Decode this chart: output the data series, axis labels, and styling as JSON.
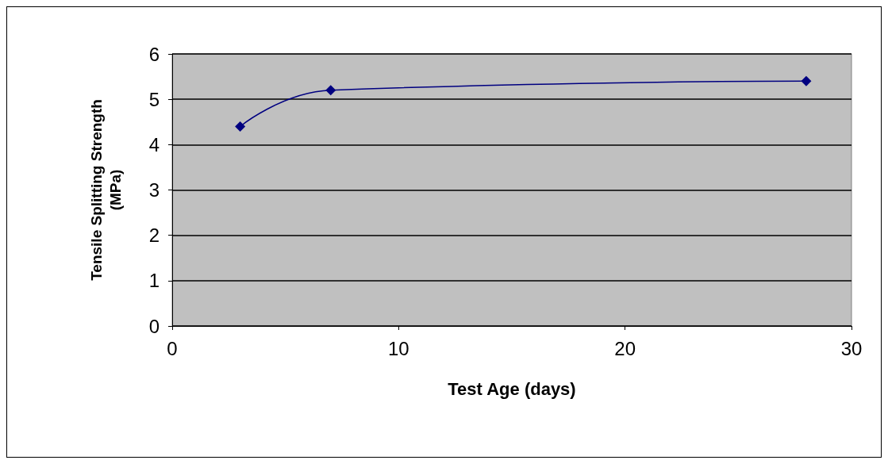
{
  "chart_data": {
    "type": "line",
    "xlabel": "Test Age (days)",
    "ylabel": "Tensile Splitting Strength\n(MPa)",
    "x": [
      3,
      7,
      28
    ],
    "series": [
      {
        "color": "#000080",
        "values": [
          4.4,
          5.2,
          5.4
        ]
      }
    ],
    "xlim": [
      0,
      30
    ],
    "xticks": [
      0,
      10,
      20,
      30
    ],
    "ylim": [
      0,
      6
    ],
    "yticks": [
      0,
      1,
      2,
      3,
      4,
      5,
      6
    ],
    "grid": "y",
    "marker": "diamond",
    "line_style": "solid"
  }
}
